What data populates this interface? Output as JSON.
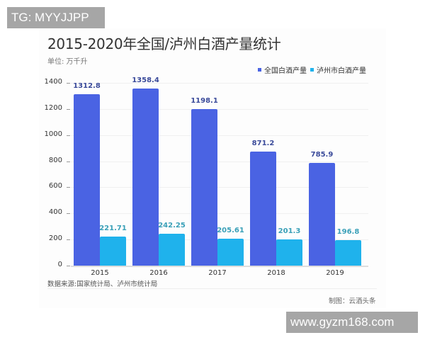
{
  "watermarks": {
    "top_left": "TG: MYYJJPP",
    "bottom_right": "www.gyzm168.com"
  },
  "header": {
    "title": "2015-2020年全国/泸州白酒产量统计",
    "unit": "单位: 万千升"
  },
  "legend": {
    "items": [
      {
        "label": "全国白酒产量",
        "color": "#4a63e3"
      },
      {
        "label": "泸州市白酒产量",
        "color": "#1fb2ec"
      }
    ]
  },
  "footer": {
    "source": "数据来源:国家统计局、泸州市统计局",
    "credit": "制图：云酒头条"
  },
  "colors": {
    "national": "#4a63e3",
    "luzhou": "#1fb2ec",
    "national_label": "#3a4a9a",
    "luzhou_label": "#3aa0b8"
  },
  "chart_data": {
    "type": "bar",
    "title": "2015-2020年全国/泸州白酒产量统计",
    "subtitle": "单位: 万千升",
    "xlabel": "",
    "ylabel": "",
    "categories": [
      "2015",
      "2016",
      "2017",
      "2018",
      "2019"
    ],
    "series": [
      {
        "name": "全国白酒产量",
        "values": [
          1312.8,
          1358.4,
          1198.1,
          871.2,
          785.9
        ],
        "labels": [
          "1312.8",
          "1358.4",
          "1198.1",
          "871.2",
          "785.9"
        ]
      },
      {
        "name": "泸州市白酒产量",
        "values": [
          221.71,
          242.25,
          205.61,
          201.3,
          196.8
        ],
        "labels": [
          "221.71",
          "242.25",
          "205.61",
          "201.3",
          "196.8"
        ]
      }
    ],
    "yticks": [
      "0",
      "200",
      "400",
      "600",
      "800",
      "1000",
      "1200",
      "1400"
    ],
    "ylim": [
      0,
      1400
    ],
    "grid": true,
    "legend_position": "top-right",
    "annotations": [
      "数据来源:国家统计局、泸州市统计局",
      "制图：云酒头条"
    ]
  }
}
